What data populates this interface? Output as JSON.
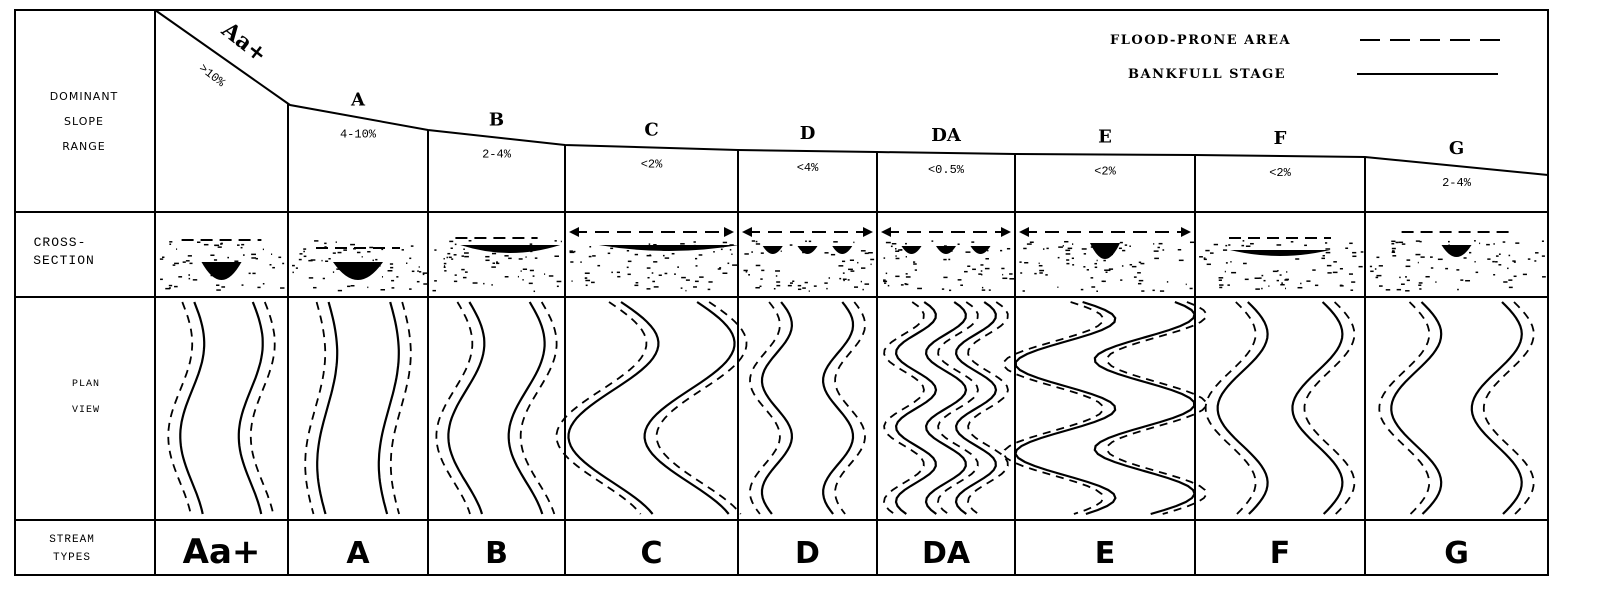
{
  "row_labels": {
    "slope": [
      "DOMINANT",
      "SLOPE",
      "RANGE"
    ],
    "cross_section": [
      "CROSS-",
      "SECTION"
    ],
    "plan_view": [
      "PLAN",
      "VIEW"
    ],
    "stream_types": [
      "STREAM",
      "TYPES"
    ]
  },
  "legend": {
    "flood_prone": "FLOOD-PRONE AREA",
    "bankfull": "BANKFULL STAGE"
  },
  "streams": [
    {
      "type": "Aa+",
      "slope": ">10%"
    },
    {
      "type": "A",
      "slope": "4-10%"
    },
    {
      "type": "B",
      "slope": "2-4%"
    },
    {
      "type": "C",
      "slope": "<2%"
    },
    {
      "type": "D",
      "slope": "<4%"
    },
    {
      "type": "DA",
      "slope": "<0.5%"
    },
    {
      "type": "E",
      "slope": "<2%"
    },
    {
      "type": "F",
      "slope": "<2%"
    },
    {
      "type": "G",
      "slope": "2-4%"
    }
  ],
  "colors": {
    "ink": "#000000",
    "paper": "#ffffff"
  }
}
